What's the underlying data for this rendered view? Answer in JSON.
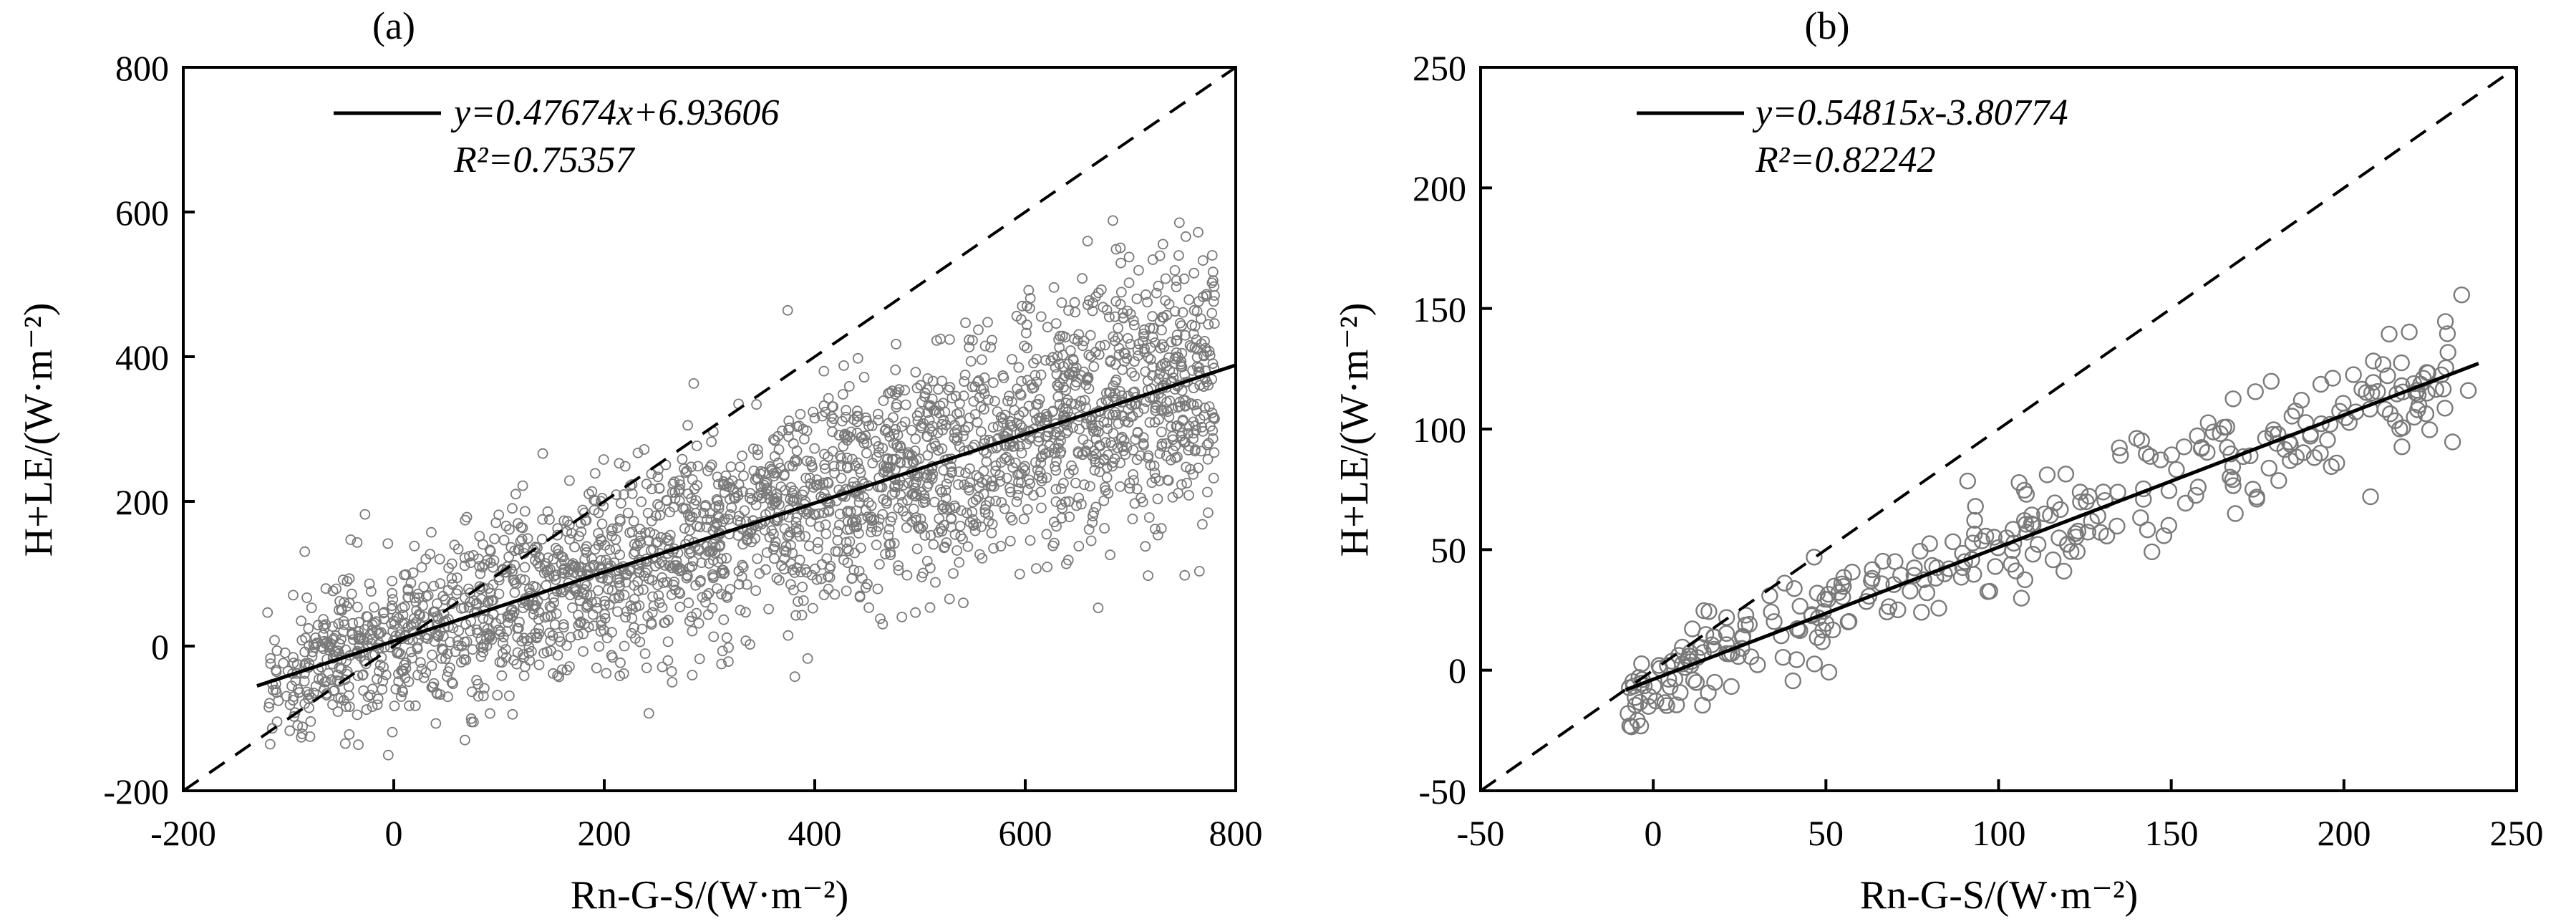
{
  "chart_data": [
    {
      "type": "scatter",
      "title": "(a)",
      "xlabel": "Rn-G-S/(W·m⁻²)",
      "ylabel": "H+LE/(W·m⁻²)",
      "xlim": [
        -200,
        800
      ],
      "ylim": [
        -200,
        800
      ],
      "xticks": [
        "-200",
        "0",
        "200",
        "400",
        "600",
        "800"
      ],
      "yticks": [
        "-200",
        "0",
        "200",
        "400",
        "600",
        "800"
      ],
      "fit": {
        "slope": 0.47674,
        "intercept": 6.93606,
        "x_range": [
          -130,
          800
        ]
      },
      "fit_equation": "y=0.47674x+6.93606",
      "r_squared": "R²=0.75357",
      "reference_line": "1:1 dashed",
      "scatter_cloud": {
        "n_points": 2600,
        "x_range": [
          -120,
          780
        ],
        "residual_sd": 80,
        "seed": 11
      }
    },
    {
      "type": "scatter",
      "title": "(b)",
      "xlabel": "Rn-G-S/(W·m⁻²)",
      "ylabel": "H+LE/(W·m⁻²)",
      "xlim": [
        -50,
        250
      ],
      "ylim": [
        -50,
        250
      ],
      "xticks": [
        "-50",
        "0",
        "50",
        "100",
        "150",
        "200",
        "250"
      ],
      "yticks": [
        "-50",
        "0",
        "50",
        "100",
        "150",
        "200",
        "250"
      ],
      "fit": {
        "slope": 0.54815,
        "intercept": -3.80774,
        "x_range": [
          -8,
          239
        ]
      },
      "fit_equation": "y=0.54815x-3.80774",
      "r_squared": "R²=0.82242",
      "reference_line": "1:1 dashed",
      "scatter_cloud": {
        "n_points": 330,
        "x_range": [
          -8,
          240
        ],
        "residual_sd": 13,
        "seed": 29
      }
    }
  ]
}
